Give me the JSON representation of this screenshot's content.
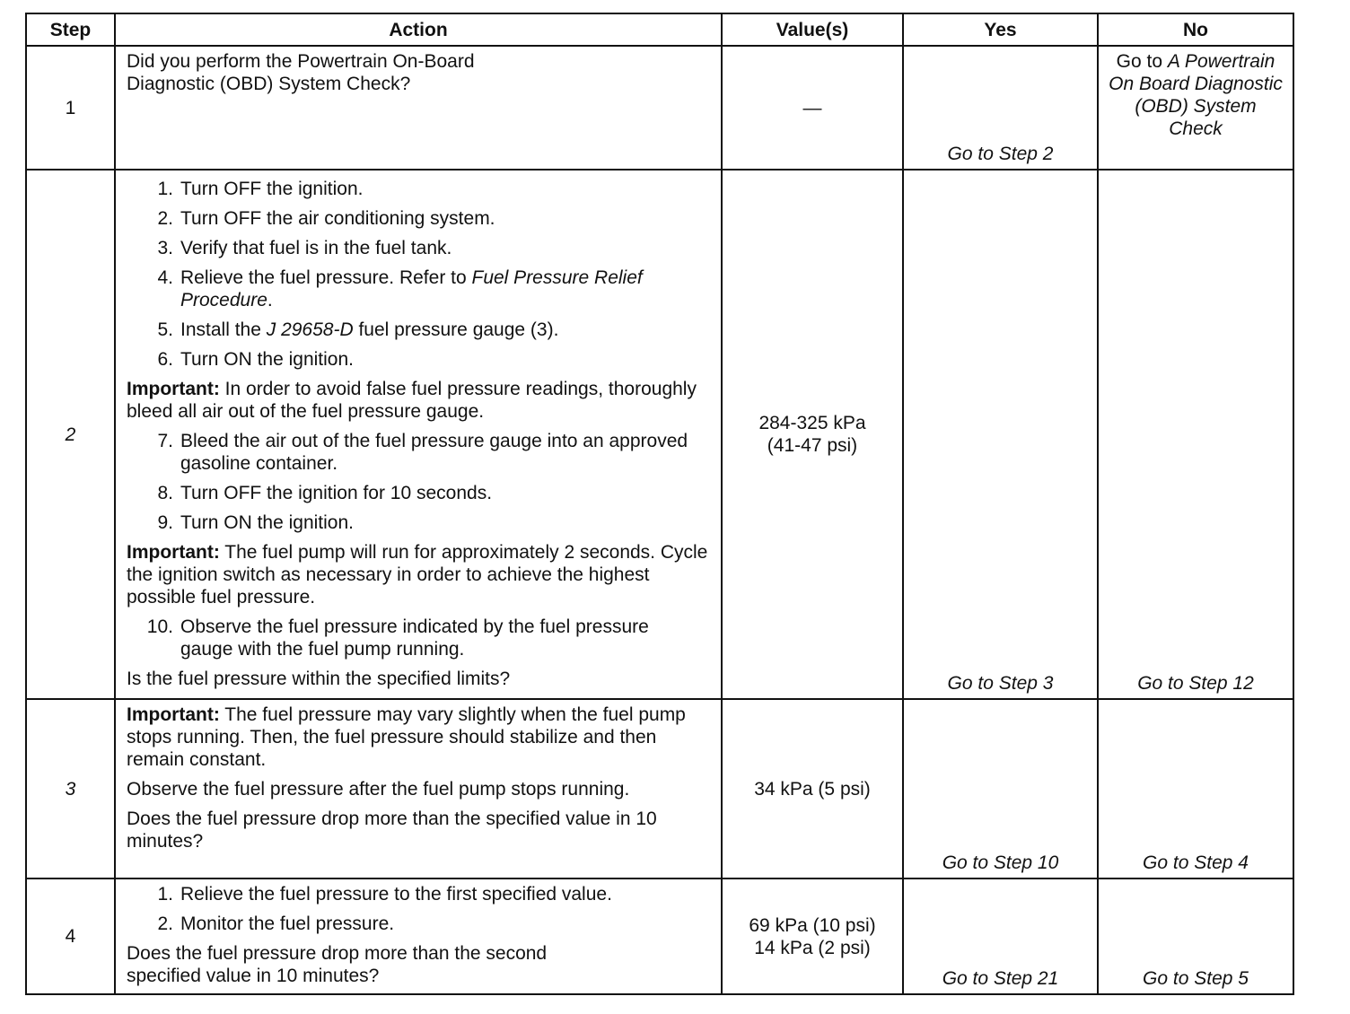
{
  "headers": {
    "step": "Step",
    "action": "Action",
    "values": "Value(s)",
    "yes": "Yes",
    "no": "No"
  },
  "rows": [
    {
      "step": "1",
      "action": {
        "question": "Did you perform the Powertrain On-Board Diagnostic (OBD) System Check?"
      },
      "value": "—",
      "yes": "Go to Step 2",
      "no_prefix": "Go to ",
      "no_italic": "A Powertrain On Board Diagnostic (OBD) System Check"
    },
    {
      "step": "2",
      "action": {
        "items_a": [
          {
            "n": "1.",
            "t": "Turn OFF the ignition."
          },
          {
            "n": "2.",
            "t": "Turn OFF the air conditioning system."
          },
          {
            "n": "3.",
            "t": "Verify that fuel is in the fuel tank."
          }
        ],
        "item4": {
          "n": "4.",
          "t": "Relieve the fuel pressure. Refer to ",
          "ref": "Fuel Pressure Relief Procedure",
          "end": "."
        },
        "item5": {
          "n": "5.",
          "pre": "Install the ",
          "tool": "J 29658-D",
          "post": " fuel pressure gauge (3)."
        },
        "item6": {
          "n": "6.",
          "t": "Turn ON the ignition."
        },
        "important1": {
          "label": "Important:",
          "t": " In order to avoid false fuel pressure readings, thoroughly bleed all air out of the fuel pressure gauge."
        },
        "items_b": [
          {
            "n": "7.",
            "t": "Bleed the air out of the fuel pressure gauge into an approved gasoline container."
          },
          {
            "n": "8.",
            "t": "Turn OFF the ignition for 10 seconds."
          },
          {
            "n": "9.",
            "t": "Turn ON the ignition."
          }
        ],
        "important2": {
          "label": "Important:",
          "t": " The fuel pump will run for approximately 2 seconds. Cycle the ignition switch as necessary in order to achieve the highest possible fuel pressure."
        },
        "item10": {
          "n": "10.",
          "t": "Observe the fuel pressure indicated by the fuel pressure gauge with the fuel pump running."
        },
        "question": "Is the fuel pressure within the specified limits?"
      },
      "value_1": "284-325 kPa",
      "value_2": "(41-47 psi)",
      "yes": "Go to Step 3",
      "no": "Go to Step 12"
    },
    {
      "step": "3",
      "action": {
        "important": {
          "label": "Important:",
          "t": " The fuel pressure may vary slightly when the fuel pump stops running. Then, the fuel pressure should stabilize and then remain constant."
        },
        "text": "Observe the fuel pressure after the fuel pump stops running.",
        "question": "Does the fuel pressure drop more than the specified value in 10 minutes?"
      },
      "value": "34 kPa (5 psi)",
      "yes": "Go to Step 10",
      "no": "Go to Step 4"
    },
    {
      "step": "4",
      "action": {
        "items": [
          {
            "n": "1.",
            "t": "Relieve the fuel pressure to the first specified value."
          },
          {
            "n": "2.",
            "t": "Monitor the fuel pressure."
          }
        ],
        "question": "Does the fuel pressure drop more than the second specified value in 10 minutes?"
      },
      "value_1": "69 kPa (10 psi)",
      "value_2": "14 kPa (2 psi)",
      "yes": "Go to Step 21",
      "no": "Go to Step 5"
    }
  ]
}
